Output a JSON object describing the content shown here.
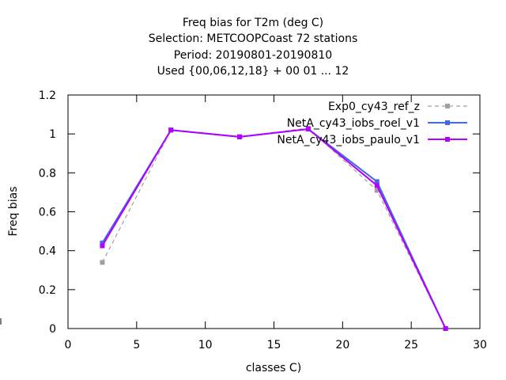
{
  "chart_data": {
    "type": "line",
    "title_lines": [
      "Freq bias  for T2m (deg C)",
      "Selection: METCOOPCoast     72 stations",
      "Period: 20190801-20190810",
      "Used {00,06,12,18} + 00 01 ... 12"
    ],
    "xlabel": "classes C)",
    "ylabel": "Freq bias",
    "xlim": [
      0,
      30
    ],
    "ylim": [
      0,
      1.2
    ],
    "xticks": [
      "0",
      "5",
      "10",
      "15",
      "20",
      "25",
      "30"
    ],
    "yticks": [
      "0",
      "0.2",
      "0.4",
      "0.6",
      "0.8",
      "1",
      "1.2"
    ],
    "x": [
      2.5,
      7.5,
      12.5,
      17.5,
      22.5,
      27.5
    ],
    "legend_position": "top-right",
    "grid": false,
    "series": [
      {
        "name": "Exp0_cy43_ref_z",
        "values": [
          0.34,
          1.02,
          0.985,
          1.03,
          0.71,
          0.0
        ],
        "color": "#a0a0a0",
        "dashed": true
      },
      {
        "name": "NetA_cy43_iobs_roel_v1",
        "values": [
          0.44,
          1.02,
          0.985,
          1.025,
          0.755,
          0.0
        ],
        "color": "#4169e1",
        "dashed": false
      },
      {
        "name": "NetA_cy43_iobs_paulo_v1",
        "values": [
          0.425,
          1.02,
          0.985,
          1.025,
          0.735,
          0.0
        ],
        "color": "#b400ff",
        "dashed": false
      }
    ]
  }
}
